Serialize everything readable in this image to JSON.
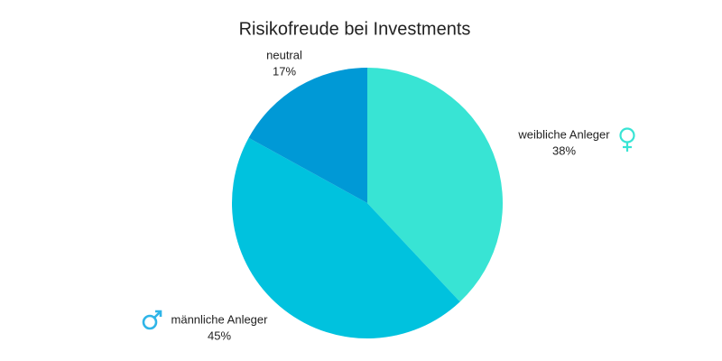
{
  "chart_data": {
    "type": "pie",
    "title": "Risikofreude bei Investments",
    "categories": [
      "weibliche Anleger",
      "männliche Anleger",
      "neutral"
    ],
    "values": [
      38,
      45,
      17
    ],
    "value_labels": [
      "38%",
      "45%",
      "17%"
    ],
    "colors": [
      "#38e4d4",
      "#00c2de",
      "#0099d6"
    ]
  }
}
